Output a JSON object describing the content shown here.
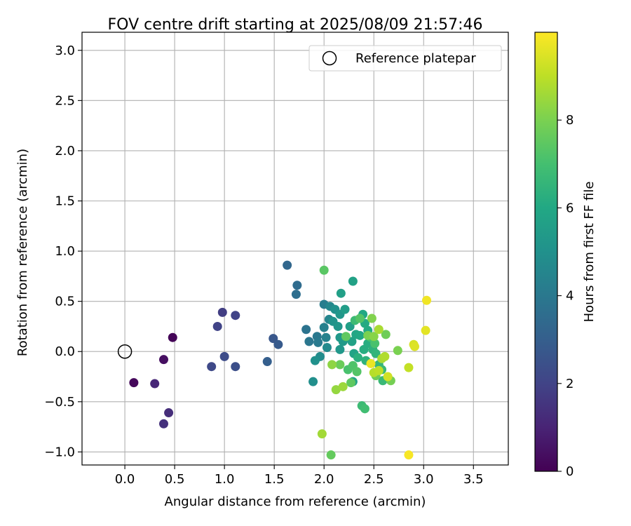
{
  "chart_data": {
    "type": "scatter",
    "title": "FOV centre drift starting at 2025/08/09 21:57:46",
    "xlabel": "Angular distance from reference (arcmin)",
    "ylabel": "Rotation from reference (arcmin)",
    "xlim": [
      -0.43,
      3.85
    ],
    "ylim": [
      -1.13,
      3.18
    ],
    "xticks": [
      0.0,
      0.5,
      1.0,
      1.5,
      2.0,
      2.5,
      3.0,
      3.5
    ],
    "yticks": [
      -1.0,
      -0.5,
      0.0,
      0.5,
      1.0,
      1.5,
      2.0,
      2.5,
      3.0
    ],
    "xtick_labels": [
      "0.0",
      "0.5",
      "1.0",
      "1.5",
      "2.0",
      "2.5",
      "3.0",
      "3.5"
    ],
    "ytick_labels": [
      "−1.0",
      "−0.5",
      "0.0",
      "0.5",
      "1.0",
      "1.5",
      "2.0",
      "2.5",
      "3.0"
    ],
    "grid": true,
    "legend": {
      "position": "top-right",
      "label": "Reference platepar"
    },
    "reference_point": {
      "x": 0.0,
      "y": 0.0
    },
    "colorbar": {
      "label": "Hours from first FF file",
      "colormap": "viridis",
      "range": [
        0,
        10
      ],
      "ticks": [
        0,
        2,
        4,
        6,
        8
      ],
      "tick_labels": [
        "0",
        "2",
        "4",
        "6",
        "8"
      ]
    },
    "points": [
      {
        "x": 0.48,
        "y": 0.14,
        "c": 0.1
      },
      {
        "x": 0.09,
        "y": -0.31,
        "c": 0.2
      },
      {
        "x": 0.39,
        "y": -0.08,
        "c": 0.4
      },
      {
        "x": 0.3,
        "y": -0.32,
        "c": 1.1
      },
      {
        "x": 0.44,
        "y": -0.61,
        "c": 1.3
      },
      {
        "x": 0.39,
        "y": -0.72,
        "c": 1.4
      },
      {
        "x": 0.98,
        "y": 0.39,
        "c": 1.8
      },
      {
        "x": 0.93,
        "y": 0.25,
        "c": 2.0
      },
      {
        "x": 1.11,
        "y": 0.36,
        "c": 2.0
      },
      {
        "x": 0.87,
        "y": -0.15,
        "c": 2.2
      },
      {
        "x": 1.0,
        "y": -0.05,
        "c": 2.3
      },
      {
        "x": 1.11,
        "y": -0.15,
        "c": 2.4
      },
      {
        "x": 1.49,
        "y": 0.13,
        "c": 2.7
      },
      {
        "x": 1.54,
        "y": 0.07,
        "c": 2.8
      },
      {
        "x": 1.43,
        "y": -0.1,
        "c": 3.0
      },
      {
        "x": 1.63,
        "y": 0.86,
        "c": 3.3
      },
      {
        "x": 1.73,
        "y": 0.66,
        "c": 3.5
      },
      {
        "x": 1.72,
        "y": 0.57,
        "c": 3.6
      },
      {
        "x": 1.82,
        "y": 0.22,
        "c": 3.8
      },
      {
        "x": 1.85,
        "y": 0.1,
        "c": 3.9
      },
      {
        "x": 1.93,
        "y": 0.15,
        "c": 4.0
      },
      {
        "x": 1.94,
        "y": 0.09,
        "c": 4.1
      },
      {
        "x": 2.0,
        "y": 0.47,
        "c": 4.2
      },
      {
        "x": 2.0,
        "y": 0.24,
        "c": 4.3
      },
      {
        "x": 2.02,
        "y": 0.14,
        "c": 4.4
      },
      {
        "x": 2.05,
        "y": 0.32,
        "c": 4.5
      },
      {
        "x": 2.06,
        "y": 0.45,
        "c": 4.6
      },
      {
        "x": 2.03,
        "y": 0.04,
        "c": 4.7
      },
      {
        "x": 1.96,
        "y": -0.05,
        "c": 4.8
      },
      {
        "x": 1.89,
        "y": -0.3,
        "c": 4.9
      },
      {
        "x": 1.91,
        "y": -0.09,
        "c": 5.0
      },
      {
        "x": 2.11,
        "y": 0.42,
        "c": 5.0
      },
      {
        "x": 2.09,
        "y": 0.3,
        "c": 5.1
      },
      {
        "x": 2.14,
        "y": 0.25,
        "c": 5.2
      },
      {
        "x": 2.16,
        "y": 0.37,
        "c": 5.2
      },
      {
        "x": 2.16,
        "y": 0.14,
        "c": 5.3
      },
      {
        "x": 2.16,
        "y": 0.02,
        "c": 5.3
      },
      {
        "x": 2.19,
        "y": 0.1,
        "c": 5.4
      },
      {
        "x": 2.21,
        "y": 0.42,
        "c": 5.5
      },
      {
        "x": 2.17,
        "y": 0.58,
        "c": 5.6
      },
      {
        "x": 2.26,
        "y": 0.25,
        "c": 5.6
      },
      {
        "x": 2.28,
        "y": 0.1,
        "c": 5.7
      },
      {
        "x": 2.29,
        "y": 0.7,
        "c": 5.7
      },
      {
        "x": 2.29,
        "y": -0.3,
        "c": 5.8
      },
      {
        "x": 2.3,
        "y": -0.02,
        "c": 5.8
      },
      {
        "x": 2.32,
        "y": 0.17,
        "c": 5.9
      },
      {
        "x": 2.36,
        "y": 0.16,
        "c": 6.0
      },
      {
        "x": 2.39,
        "y": 0.37,
        "c": 6.0
      },
      {
        "x": 2.41,
        "y": 0.28,
        "c": 6.1
      },
      {
        "x": 2.44,
        "y": 0.21,
        "c": 6.1
      },
      {
        "x": 2.4,
        "y": 0.02,
        "c": 6.2
      },
      {
        "x": 2.44,
        "y": 0.08,
        "c": 6.2
      },
      {
        "x": 2.34,
        "y": -0.06,
        "c": 6.3
      },
      {
        "x": 2.42,
        "y": -0.09,
        "c": 6.4
      },
      {
        "x": 2.49,
        "y": 0.02,
        "c": 6.4
      },
      {
        "x": 2.52,
        "y": -0.02,
        "c": 6.5
      },
      {
        "x": 2.55,
        "y": -0.13,
        "c": 6.6
      },
      {
        "x": 2.58,
        "y": -0.18,
        "c": 6.7
      },
      {
        "x": 2.59,
        "y": -0.29,
        "c": 6.7
      },
      {
        "x": 2.38,
        "y": -0.54,
        "c": 6.8
      },
      {
        "x": 2.31,
        "y": 0.31,
        "c": 6.8
      },
      {
        "x": 2.41,
        "y": -0.57,
        "c": 6.9
      },
      {
        "x": 2.47,
        "y": 0.14,
        "c": 7.0
      },
      {
        "x": 2.51,
        "y": 0.08,
        "c": 7.1
      },
      {
        "x": 2.24,
        "y": -0.18,
        "c": 7.1
      },
      {
        "x": 2.29,
        "y": -0.14,
        "c": 7.2
      },
      {
        "x": 2.33,
        "y": -0.2,
        "c": 7.3
      },
      {
        "x": 2.36,
        "y": 0.33,
        "c": 7.3
      },
      {
        "x": 2.0,
        "y": 0.81,
        "c": 7.4
      },
      {
        "x": 2.22,
        "y": 0.15,
        "c": 7.5
      },
      {
        "x": 2.27,
        "y": -0.31,
        "c": 7.5
      },
      {
        "x": 2.07,
        "y": -1.03,
        "c": 7.6
      },
      {
        "x": 2.16,
        "y": -0.13,
        "c": 7.7
      },
      {
        "x": 2.52,
        "y": -0.24,
        "c": 7.8
      },
      {
        "x": 2.62,
        "y": 0.17,
        "c": 7.8
      },
      {
        "x": 2.67,
        "y": -0.29,
        "c": 7.9
      },
      {
        "x": 2.74,
        "y": 0.01,
        "c": 8.0
      },
      {
        "x": 2.44,
        "y": 0.16,
        "c": 8.0
      },
      {
        "x": 2.48,
        "y": 0.33,
        "c": 8.1
      },
      {
        "x": 2.5,
        "y": 0.15,
        "c": 8.2
      },
      {
        "x": 2.08,
        "y": -0.13,
        "c": 8.3
      },
      {
        "x": 2.12,
        "y": -0.38,
        "c": 8.4
      },
      {
        "x": 2.19,
        "y": -0.35,
        "c": 8.5
      },
      {
        "x": 1.98,
        "y": -0.82,
        "c": 8.6
      },
      {
        "x": 2.55,
        "y": 0.22,
        "c": 8.7
      },
      {
        "x": 2.58,
        "y": -0.07,
        "c": 8.7
      },
      {
        "x": 2.61,
        "y": -0.05,
        "c": 8.8
      },
      {
        "x": 2.5,
        "y": -0.21,
        "c": 8.9
      },
      {
        "x": 2.55,
        "y": -0.19,
        "c": 9.0
      },
      {
        "x": 2.85,
        "y": -0.16,
        "c": 9.1
      },
      {
        "x": 2.64,
        "y": -0.25,
        "c": 9.3
      },
      {
        "x": 2.9,
        "y": 0.07,
        "c": 9.4
      },
      {
        "x": 2.91,
        "y": 0.05,
        "c": 9.5
      },
      {
        "x": 3.02,
        "y": 0.21,
        "c": 9.6
      },
      {
        "x": 2.47,
        "y": -0.12,
        "c": 9.7
      },
      {
        "x": 3.03,
        "y": 0.51,
        "c": 9.8
      },
      {
        "x": 2.85,
        "y": -1.03,
        "c": 9.9
      }
    ]
  }
}
